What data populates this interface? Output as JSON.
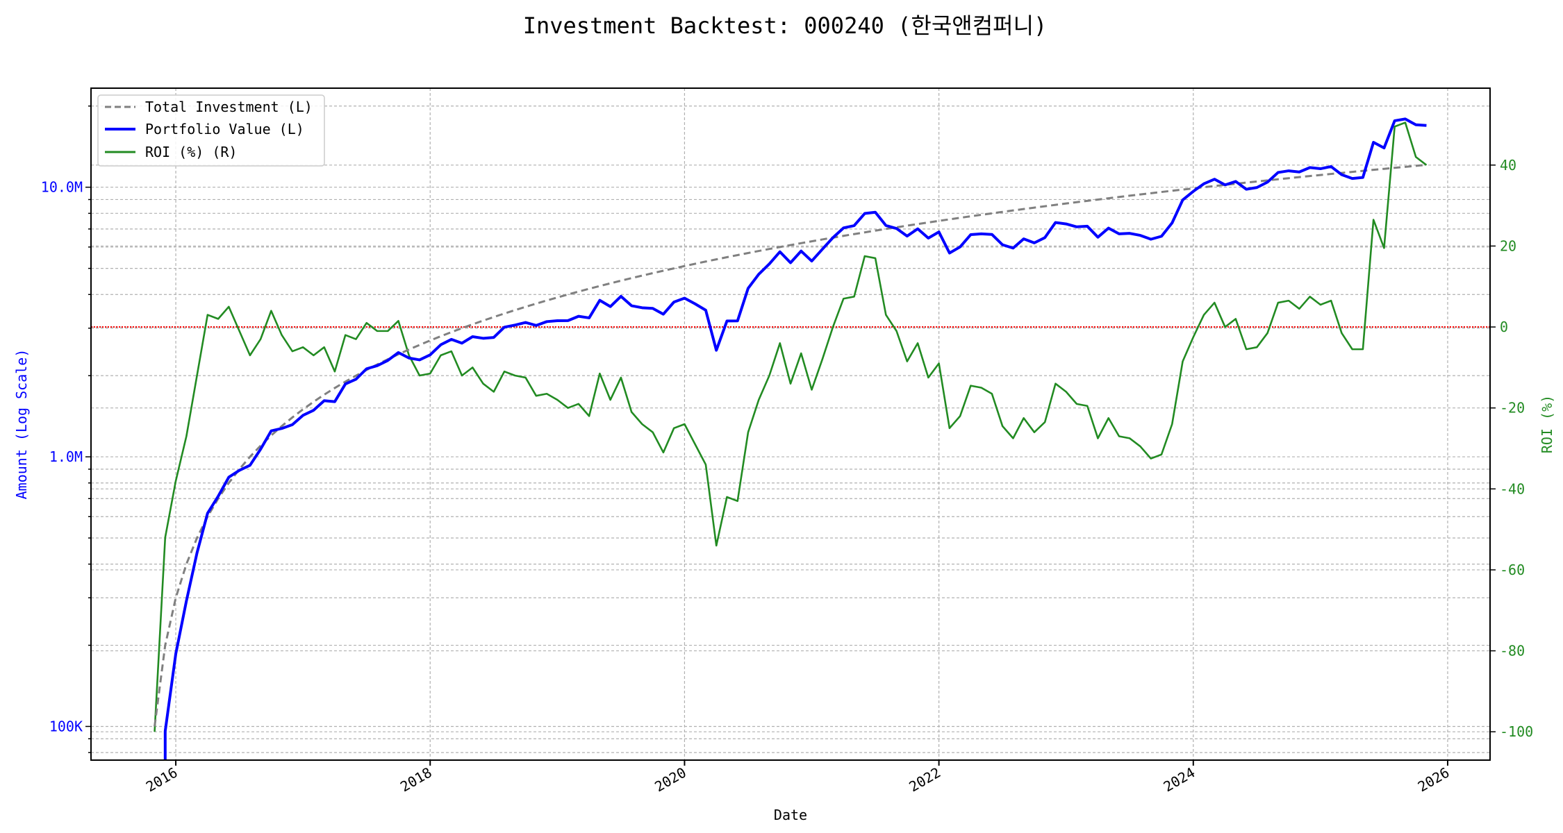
{
  "chart_data": {
    "type": "line",
    "title": "Investment Backtest: 000240 (한국앤컴퍼니)",
    "xlabel": "Date",
    "ylabel_left": "Amount (Log Scale)",
    "ylabel_right": "ROI (%)",
    "left_scale": "log",
    "left_ylim": [
      75000,
      23300000
    ],
    "right_ylim": [
      -107,
      59
    ],
    "xlim": [
      "2015-05",
      "2026-05"
    ],
    "x_ticks": [
      "2016",
      "2018",
      "2020",
      "2022",
      "2024",
      "2026"
    ],
    "left_ticks": [
      {
        "value": 100000,
        "label": "100K"
      },
      {
        "value": 1000000,
        "label": "1.0M"
      },
      {
        "value": 10000000,
        "label": "10.0M"
      }
    ],
    "right_ticks": [
      -100,
      -80,
      -60,
      -40,
      -20,
      0,
      20,
      40
    ],
    "grid": true,
    "legend_position": "upper-left",
    "reference_line": {
      "axis": "right",
      "value": 0,
      "color": "#ff0000",
      "style": "dotted"
    },
    "colors": {
      "left_axis": "#0000ff",
      "right_axis": "#228b22"
    },
    "x": [
      "2015-11",
      "2015-12",
      "2016-01",
      "2016-02",
      "2016-03",
      "2016-04",
      "2016-05",
      "2016-06",
      "2016-07",
      "2016-08",
      "2016-09",
      "2016-10",
      "2016-11",
      "2016-12",
      "2017-01",
      "2017-02",
      "2017-03",
      "2017-04",
      "2017-05",
      "2017-06",
      "2017-07",
      "2017-08",
      "2017-09",
      "2017-10",
      "2017-11",
      "2017-12",
      "2018-01",
      "2018-02",
      "2018-03",
      "2018-04",
      "2018-05",
      "2018-06",
      "2018-07",
      "2018-08",
      "2018-09",
      "2018-10",
      "2018-11",
      "2018-12",
      "2019-01",
      "2019-02",
      "2019-03",
      "2019-04",
      "2019-05",
      "2019-06",
      "2019-07",
      "2019-08",
      "2019-09",
      "2019-10",
      "2019-11",
      "2019-12",
      "2020-01",
      "2020-02",
      "2020-03",
      "2020-04",
      "2020-05",
      "2020-06",
      "2020-07",
      "2020-08",
      "2020-09",
      "2020-10",
      "2020-11",
      "2020-12",
      "2021-01",
      "2021-02",
      "2021-03",
      "2021-04",
      "2021-05",
      "2021-06",
      "2021-07",
      "2021-08",
      "2021-09",
      "2021-10",
      "2021-11",
      "2021-12",
      "2022-01",
      "2022-02",
      "2022-03",
      "2022-04",
      "2022-05",
      "2022-06",
      "2022-07",
      "2022-08",
      "2022-09",
      "2022-10",
      "2022-11",
      "2022-12",
      "2023-01",
      "2023-02",
      "2023-03",
      "2023-04",
      "2023-05",
      "2023-06",
      "2023-07",
      "2023-08",
      "2023-09",
      "2023-10",
      "2023-11",
      "2023-12",
      "2024-01",
      "2024-02",
      "2024-03",
      "2024-04",
      "2024-05",
      "2024-06",
      "2024-07",
      "2024-08",
      "2024-09",
      "2024-10",
      "2024-11",
      "2024-12",
      "2025-01",
      "2025-02",
      "2025-03",
      "2025-04",
      "2025-05",
      "2025-06",
      "2025-07",
      "2025-08",
      "2025-09",
      "2025-10",
      "2025-11"
    ],
    "series": [
      {
        "name": "Total Investment (L)",
        "axis": "left",
        "color": "#808080",
        "style": "dashed",
        "values": [
          100000,
          200000,
          300000,
          400000,
          500000,
          600000,
          700000,
          800000,
          900000,
          1000000,
          1100000,
          1200000,
          1300000,
          1400000,
          1500000,
          1600000,
          1700000,
          1800000,
          1900000,
          2000000,
          2100000,
          2200000,
          2300000,
          2400000,
          2500000,
          2600000,
          2700000,
          2800000,
          2900000,
          3000000,
          3100000,
          3200000,
          3300000,
          3400000,
          3500000,
          3600000,
          3700000,
          3800000,
          3900000,
          4000000,
          4100000,
          4200000,
          4300000,
          4400000,
          4500000,
          4600000,
          4700000,
          4800000,
          4900000,
          5000000,
          5100000,
          5200000,
          5300000,
          5400000,
          5500000,
          5600000,
          5700000,
          5800000,
          5900000,
          6000000,
          6100000,
          6200000,
          6300000,
          6400000,
          6500000,
          6600000,
          6700000,
          6800000,
          6900000,
          7000000,
          7100000,
          7200000,
          7300000,
          7400000,
          7500000,
          7600000,
          7700000,
          7800000,
          7900000,
          8000000,
          8100000,
          8200000,
          8300000,
          8400000,
          8500000,
          8600000,
          8700000,
          8800000,
          8900000,
          9000000,
          9100000,
          9200000,
          9300000,
          9400000,
          9500000,
          9600000,
          9700000,
          9800000,
          9900000,
          10000000,
          10100000,
          10200000,
          10300000,
          10400000,
          10500000,
          10600000,
          10700000,
          10800000,
          10900000,
          11000000,
          11100000,
          11200000,
          11300000,
          11400000,
          11500000,
          11600000,
          11700000,
          11800000,
          11900000,
          12000000,
          12100000
        ]
      },
      {
        "name": "Portfolio Value (L)",
        "axis": "left",
        "color": "#0000ff",
        "style": "solid",
        "values": [
          0,
          96000,
          186000,
          292000,
          440000,
          618000,
          714000,
          840000,
          891000,
          930000,
          1067000,
          1248000,
          1274000,
          1316000,
          1425000,
          1488000,
          1615000,
          1602000,
          1862000,
          1940000,
          2121000,
          2178000,
          2277000,
          2436000,
          2325000,
          2288000,
          2389500,
          2604000,
          2726000,
          2640000,
          2790000,
          2752000,
          2772000,
          3026000,
          3080000,
          3150000,
          3071000,
          3173000,
          3198000,
          3200000,
          3321000,
          3276000,
          3805500,
          3608000,
          3937500,
          3634000,
          3572000,
          3552000,
          3381000,
          3750000,
          3876000,
          3692000,
          3498000,
          2484000,
          3190000,
          3192000,
          4218000,
          4756000,
          5192000,
          5760000,
          5246000,
          5797000,
          5323500,
          5888000,
          6500000,
          7062000,
          7202500,
          7990000,
          8073000,
          7210000,
          7029000,
          6588000,
          7008000,
          6475000,
          6825000,
          5700000,
          6006000,
          6669000,
          6715000,
          6680000,
          6115500,
          5945000,
          6432500,
          6216000,
          6502500,
          7396000,
          7308000,
          7128000,
          7164500,
          6525000,
          7052500,
          6716000,
          6742500,
          6627000,
          6412500,
          6576000,
          7372000,
          8967000,
          9652500,
          10300000,
          10706000,
          10200000,
          10506000,
          9828000,
          9975000,
          10441000,
          11342000,
          11502000,
          11390500,
          11825000,
          11710500,
          11928000,
          11130500,
          10773000,
          10867500,
          14674000,
          13981500,
          17641000,
          17909500,
          17040000,
          16940000
        ]
      },
      {
        "name": "ROI (%) (R)",
        "axis": "right",
        "color": "#228b22",
        "style": "solid",
        "values": [
          -100,
          -52,
          -38,
          -27,
          -12,
          3,
          2,
          5,
          -1,
          -7,
          -3,
          4,
          -2,
          -6,
          -5,
          -7,
          -5,
          -11,
          -2,
          -3,
          1,
          -1,
          -1,
          1.5,
          -7,
          -12,
          -11.5,
          -7,
          -6,
          -12,
          -10,
          -14,
          -16,
          -11,
          -12,
          -12.5,
          -17,
          -16.5,
          -18,
          -20,
          -19,
          -22,
          -11.5,
          -18,
          -12.5,
          -21,
          -24,
          -26,
          -31,
          -25,
          -24,
          -29,
          -34,
          -54,
          -42,
          -43,
          -26,
          -18,
          -12,
          -4,
          -14,
          -6.5,
          -15.5,
          -8,
          0,
          7,
          7.5,
          17.5,
          17,
          3,
          -1,
          -8.5,
          -4,
          -12.5,
          -9,
          -25,
          -22,
          -14.5,
          -15,
          -16.5,
          -24.5,
          -27.5,
          -22.5,
          -26,
          -23.5,
          -14,
          -16,
          -19,
          -19.5,
          -27.5,
          -22.5,
          -27,
          -27.5,
          -29.5,
          -32.5,
          -31.5,
          -24,
          -8.5,
          -2.5,
          3,
          6,
          0,
          2,
          -5.5,
          -5,
          -1.5,
          6,
          6.5,
          4.5,
          7.5,
          5.5,
          6.5,
          -1.5,
          -5.5,
          -5.5,
          26.5,
          19.5,
          49.5,
          50.5,
          42,
          40
        ]
      }
    ]
  }
}
